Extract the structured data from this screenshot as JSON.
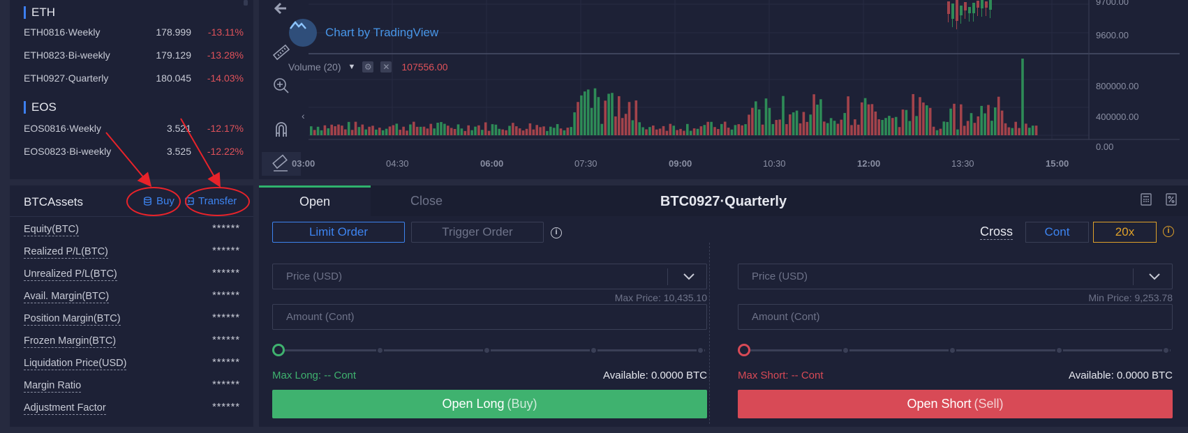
{
  "contracts": {
    "eth_title": "ETH",
    "eth": [
      {
        "name": "ETH0816·Weekly",
        "price": "178.999",
        "change": "-13.11%"
      },
      {
        "name": "ETH0823·Bi-weekly",
        "price": "179.129",
        "change": "-13.28%"
      },
      {
        "name": "ETH0927·Quarterly",
        "price": "180.045",
        "change": "-14.03%"
      }
    ],
    "eos_title": "EOS",
    "eos": [
      {
        "name": "EOS0816·Weekly",
        "price": "3.521",
        "change": "-12.17%"
      },
      {
        "name": "EOS0823·Bi-weekly",
        "price": "3.525",
        "change": "-12.22%"
      }
    ]
  },
  "assets": {
    "title": "BTCAssets",
    "buy_label": "Buy",
    "transfer_label": "Transfer",
    "rows": [
      {
        "label": "Equity(BTC)",
        "value": "******"
      },
      {
        "label": "Realized P/L(BTC)",
        "value": "******"
      },
      {
        "label": "Unrealized P/L(BTC)",
        "value": "******"
      },
      {
        "label": "Avail. Margin(BTC)",
        "value": "******"
      },
      {
        "label": "Position Margin(BTC)",
        "value": "******"
      },
      {
        "label": "Frozen Margin(BTC)",
        "value": "******"
      },
      {
        "label": "Liquidation Price(USD)",
        "value": "******"
      },
      {
        "label": "Margin Ratio",
        "value": "******"
      },
      {
        "label": "Adjustment Factor",
        "value": "******"
      }
    ]
  },
  "chart": {
    "watermark": "Chart by TradingView",
    "volume_label": "Volume (20)",
    "volume_value": "107556.00",
    "price_labels": [
      "9700.00",
      "9600.00"
    ],
    "volume_scale": [
      "800000.00",
      "400000.00",
      "0.00"
    ],
    "time_labels": [
      "03:00",
      "04:30",
      "06:00",
      "07:30",
      "09:00",
      "10:30",
      "12:00",
      "13:30",
      "15:00"
    ],
    "bold_times": [
      "06:00",
      "09:00",
      "12:00",
      "15:00",
      "03:00"
    ],
    "up_color": "#2e8b57",
    "down_color": "#a3434b"
  },
  "order": {
    "tab_open": "Open",
    "tab_close": "Close",
    "contract_title": "BTC0927·Quarterly",
    "limit_order": "Limit Order",
    "trigger_order": "Trigger Order",
    "margin_mode": "Cross",
    "unit": "Cont",
    "leverage": "20x",
    "buy": {
      "price_placeholder": "Price (USD)",
      "limit_text": "Max Price: 10,435.10",
      "amount_placeholder": "Amount (Cont)",
      "max_text": "Max Long: -- Cont",
      "available": "Available: 0.0000 BTC",
      "button_main": "Open Long",
      "button_sub": "(Buy)"
    },
    "sell": {
      "price_placeholder": "Price (USD)",
      "limit_text": "Min Price: 9,253.78",
      "amount_placeholder": "Amount (Cont)",
      "max_text": "Max Short: -- Cont",
      "available": "Available: 0.0000 BTC",
      "button_main": "Open Short",
      "button_sub": "(Sell)"
    },
    "long_color": "#3fb26f",
    "short_color": "#d84a56"
  },
  "icons": {
    "back": "arrow-left-icon",
    "ruler": "ruler-icon",
    "zoom": "zoom-in-icon",
    "magnet": "magnet-icon",
    "measure": "measure-icon",
    "calculator": "calculator-icon",
    "percent": "percent-icon",
    "info": "info-icon"
  }
}
